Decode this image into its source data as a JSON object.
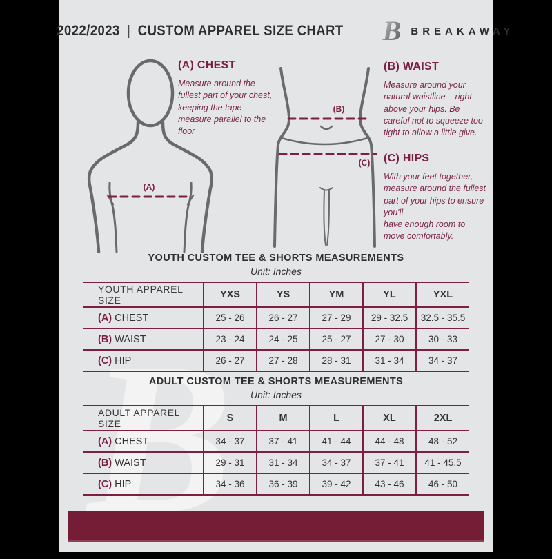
{
  "header": {
    "year": "2022/2023",
    "divider": "|",
    "title": "CUSTOM APPAREL SIZE CHART",
    "brand": "BREAKAWAY",
    "logo_icon": "breakaway-b-monogram"
  },
  "diagram": {
    "chest_label": "(A)",
    "waist_label": "(B)",
    "hips_label": "(C)"
  },
  "instructions": [
    {
      "heading": "(A) CHEST",
      "body": "Measure around the fullest part of your chest, keeping the tape measure parallel to the floor"
    },
    {
      "heading": "(B) WAIST",
      "body": "Measure around your natural waistline – right above your hips. Be careful not to squeeze too tight to allow a little give."
    },
    {
      "heading": "(C) HIPS",
      "body": "With your feet together, measure around the fullest part of your hips to ensure you'll\nhave enough room to move comfortably."
    }
  ],
  "tables": [
    {
      "title": "YOUTH CUSTOM TEE & SHORTS MEASUREMENTS",
      "unit": "Unit: Inches",
      "header": [
        "YOUTH APPAREL SIZE",
        "YXS",
        "YS",
        "YM",
        "YL",
        "YXL"
      ],
      "rows": [
        {
          "prefix": "(A)",
          "label": "CHEST",
          "values": [
            "25 - 26",
            "26 - 27",
            "27 - 29",
            "29 - 32.5",
            "32.5 - 35.5"
          ]
        },
        {
          "prefix": "(B)",
          "label": "WAIST",
          "values": [
            "23 - 24",
            "24 - 25",
            "25 - 27",
            "27 - 30",
            "30 - 33"
          ]
        },
        {
          "prefix": "(C)",
          "label": "HIP",
          "values": [
            "26 - 27",
            "27 - 28",
            "28 - 31",
            "31 - 34",
            "34 - 37"
          ]
        }
      ]
    },
    {
      "title": "ADULT CUSTOM TEE & SHORTS MEASUREMENTS",
      "unit": "Unit: Inches",
      "header": [
        "ADULT APPAREL SIZE",
        "S",
        "M",
        "L",
        "XL",
        "2XL"
      ],
      "rows": [
        {
          "prefix": "(A)",
          "label": "CHEST",
          "values": [
            "34 - 37",
            "37 - 41",
            "41 - 44",
            "44 - 48",
            "48 - 52"
          ]
        },
        {
          "prefix": "(B)",
          "label": "WAIST",
          "values": [
            "29 - 31",
            "31 - 34",
            "34 - 37",
            "37 - 41",
            "41 - 45.5"
          ]
        },
        {
          "prefix": "(C)",
          "label": "HIP",
          "values": [
            "34 - 36",
            "36 - 39",
            "39 - 42",
            "43 - 46",
            "46 - 50"
          ]
        }
      ]
    }
  ],
  "watermark": "B",
  "colors": {
    "maroon": "#7d2040",
    "footer_maroon": "#751d37",
    "page_background": "#e4e5e7",
    "text_dark": "#333335",
    "figure_gray": "#696a6c"
  }
}
